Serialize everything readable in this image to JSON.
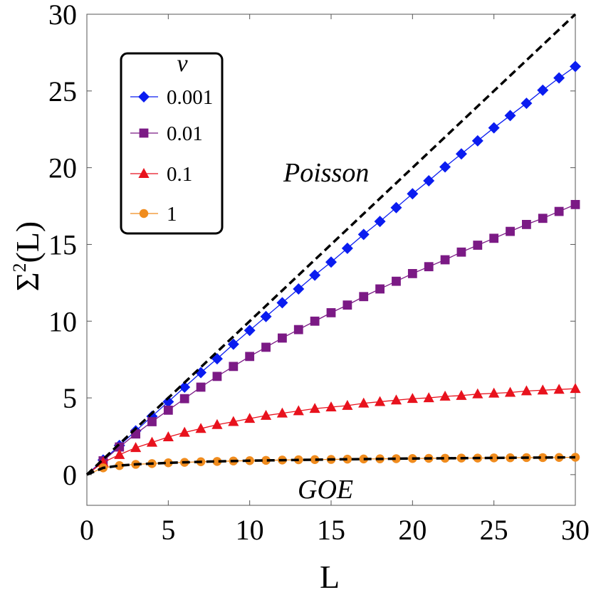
{
  "chart_data": {
    "type": "line",
    "xlabel": "L",
    "ylabel_main": "Σ",
    "ylabel_sup": "2",
    "ylabel_rest": "(L)",
    "xlim": [
      0,
      30
    ],
    "ylim": [
      -2,
      30
    ],
    "xticks": [
      "0",
      "5",
      "10",
      "15",
      "20",
      "25",
      "30"
    ],
    "yticks": [
      "0",
      "5",
      "10",
      "15",
      "20",
      "25",
      "30"
    ],
    "grid": false,
    "legend": {
      "title": "ν",
      "placement": "top-left",
      "entries": [
        "0.001",
        "0.01",
        "0.1",
        "1"
      ]
    },
    "annotations": [
      "Poisson",
      "GOE"
    ],
    "reference_lines": [
      {
        "name": "Poisson",
        "style": "dashed",
        "color": "#000000",
        "x": [
          0,
          30
        ],
        "y": [
          0,
          30
        ]
      },
      {
        "name": "GOE",
        "style": "dashed",
        "color": "#000000",
        "x": [
          0,
          1,
          2,
          3,
          5,
          7.5,
          10,
          15,
          20,
          25,
          30
        ],
        "y": [
          0,
          0.44,
          0.59,
          0.67,
          0.77,
          0.85,
          0.91,
          0.99,
          1.05,
          1.09,
          1.13
        ]
      }
    ],
    "series": [
      {
        "name": "0.001",
        "color": "#0a1cf0",
        "marker": "diamond",
        "x": [
          1,
          2,
          3,
          4,
          5,
          6,
          7,
          8,
          9,
          10,
          11,
          12,
          13,
          14,
          15,
          16,
          17,
          18,
          19,
          20,
          21,
          22,
          23,
          24,
          25,
          26,
          27,
          28,
          29,
          30
        ],
        "y": [
          0.95,
          1.9,
          2.85,
          3.8,
          4.75,
          5.7,
          6.65,
          7.55,
          8.5,
          9.4,
          10.3,
          11.2,
          12.1,
          13.0,
          13.85,
          14.75,
          15.65,
          16.5,
          17.4,
          18.3,
          19.15,
          20.05,
          20.9,
          21.75,
          22.6,
          23.4,
          24.2,
          25.05,
          25.85,
          26.6
        ]
      },
      {
        "name": "0.01",
        "color": "#7b1a85",
        "marker": "square",
        "x": [
          1,
          2,
          3,
          4,
          5,
          6,
          7,
          8,
          9,
          10,
          11,
          12,
          13,
          14,
          15,
          16,
          17,
          18,
          19,
          20,
          21,
          22,
          23,
          24,
          25,
          26,
          27,
          28,
          29,
          30
        ],
        "y": [
          0.9,
          1.8,
          2.65,
          3.45,
          4.2,
          4.95,
          5.7,
          6.4,
          7.05,
          7.7,
          8.3,
          8.9,
          9.45,
          10.0,
          10.55,
          11.05,
          11.6,
          12.1,
          12.6,
          13.1,
          13.55,
          14.0,
          14.5,
          14.95,
          15.4,
          15.85,
          16.3,
          16.7,
          17.15,
          17.6
        ]
      },
      {
        "name": "0.1",
        "color": "#e8121d",
        "marker": "triangle",
        "x": [
          1,
          2,
          3,
          4,
          5,
          6,
          7,
          8,
          9,
          10,
          11,
          12,
          13,
          14,
          15,
          16,
          17,
          18,
          19,
          20,
          21,
          22,
          23,
          24,
          25,
          26,
          27,
          28,
          29,
          30
        ],
        "y": [
          0.8,
          1.3,
          1.75,
          2.1,
          2.45,
          2.75,
          3.0,
          3.25,
          3.45,
          3.65,
          3.85,
          4.0,
          4.15,
          4.3,
          4.4,
          4.5,
          4.65,
          4.75,
          4.85,
          4.95,
          5.0,
          5.1,
          5.15,
          5.25,
          5.3,
          5.35,
          5.45,
          5.5,
          5.55,
          5.6
        ]
      },
      {
        "name": "1",
        "color": "#f08c1e",
        "marker": "circle",
        "x": [
          1,
          2,
          3,
          4,
          5,
          6,
          7,
          8,
          9,
          10,
          11,
          12,
          13,
          14,
          15,
          16,
          17,
          18,
          19,
          20,
          21,
          22,
          23,
          24,
          25,
          26,
          27,
          28,
          29,
          30
        ],
        "y": [
          0.44,
          0.59,
          0.67,
          0.72,
          0.77,
          0.8,
          0.84,
          0.86,
          0.89,
          0.91,
          0.93,
          0.95,
          0.97,
          0.98,
          0.99,
          1.01,
          1.02,
          1.03,
          1.04,
          1.05,
          1.06,
          1.07,
          1.08,
          1.08,
          1.09,
          1.1,
          1.11,
          1.11,
          1.12,
          1.13
        ]
      }
    ]
  }
}
